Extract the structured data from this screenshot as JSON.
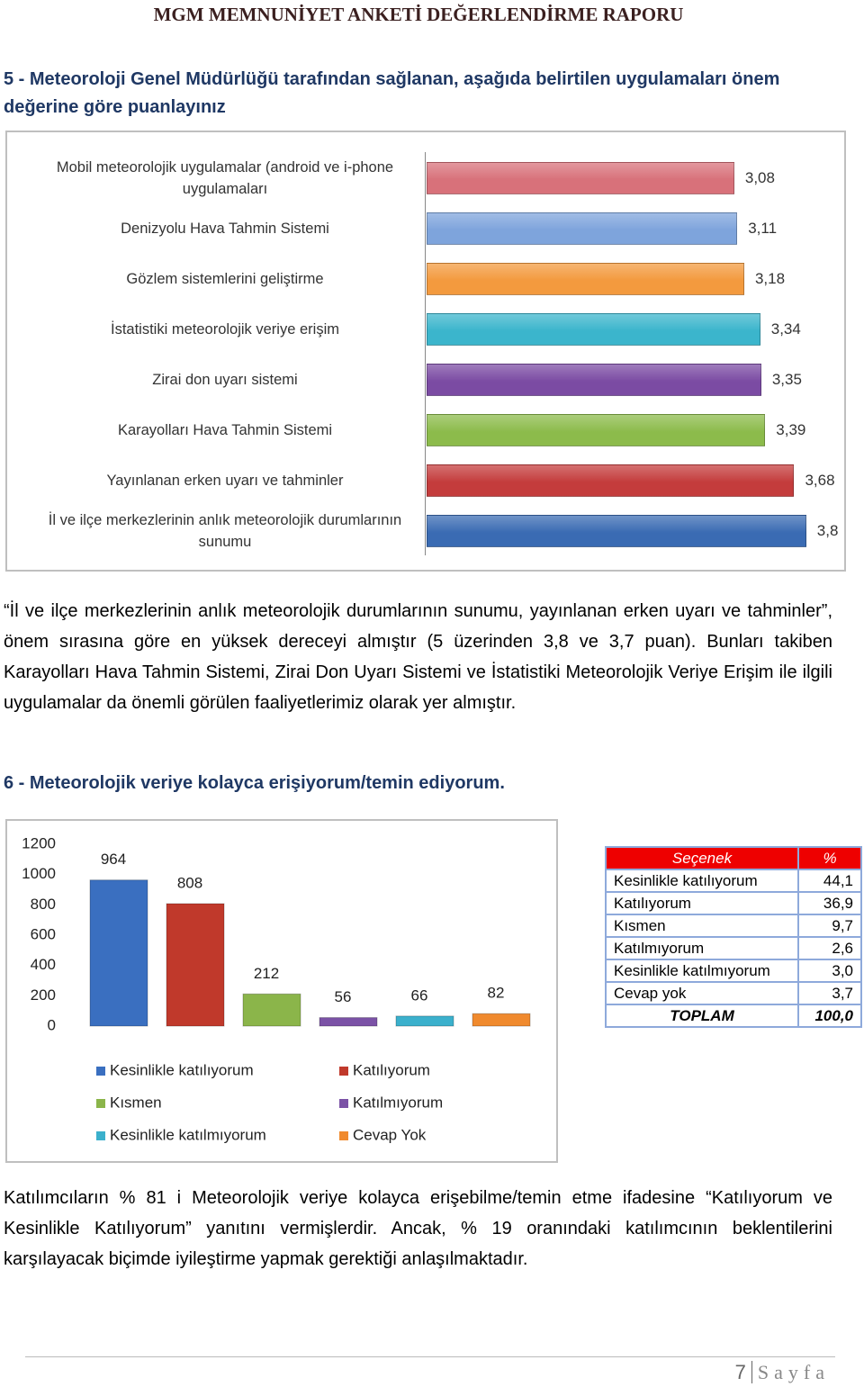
{
  "header": {
    "title": "MGM MEMNUNİYET ANKETİ DEĞERLENDİRME RAPORU"
  },
  "sections": [
    {
      "title": "5 - Meteoroloji Genel Müdürlüğü tarafından sağlanan, aşağıda belirtilen uygulamaları önem değerine göre puanlayınız",
      "paragraph": "“İl ve ilçe merkezlerinin anlık meteorolojik durumlarının sunumu, yayınlanan erken uyarı ve tahminler”, önem sırasına göre en yüksek dereceyi almıştır (5 üzerinden 3,8 ve 3,7 puan). Bunları takiben Karayolları Hava Tahmin Sistemi, Zirai Don Uyarı Sistemi ve İstatistiki Meteorolojik Veriye Erişim ile ilgili uygulamalar da önemli görülen faaliyetlerimiz olarak yer almıştır."
    },
    {
      "title": "6 -  Meteorolojik veriye kolayca erişiyorum/temin ediyorum.",
      "paragraph": "Katılımcıların % 81 i Meteorolojik veriye kolayca erişebilme/temin etme ifadesine “Katılıyorum ve Kesinlikle Katılıyorum” yanıtını vermişlerdir. Ancak, % 19 oranındaki katılımcının beklentilerini karşılayacak biçimde iyileştirme yapmak gerektiği anlaşılmaktadır."
    }
  ],
  "chart_data": [
    {
      "type": "hbar",
      "categories": [
        "Mobil meteorolojik uygulamalar (android ve i-phone uygulamaları",
        "Denizyolu Hava Tahmin Sistemi",
        "Gözlem sistemlerini geliştirme",
        "İstatistiki meteorolojik veriye erişim",
        "Zirai don uyarı sistemi",
        "Karayolları Hava Tahmin Sistemi",
        "Yayınlanan erken uyarı ve tahminler",
        "İl ve ilçe merkezlerinin anlık meteorolojik durumlarının sunumu"
      ],
      "values": [
        3.08,
        3.11,
        3.18,
        3.34,
        3.35,
        3.39,
        3.68,
        3.8
      ],
      "value_labels": [
        "3,08",
        "3,11",
        "3,18",
        "3,34",
        "3,35",
        "3,39",
        "3,68",
        "3,8"
      ],
      "colors": [
        "#d8717a",
        "#7ea4dc",
        "#f39a3e",
        "#3bb5cc",
        "#7b4ba3",
        "#8cbb4b",
        "#c43c3c",
        "#3a6bb3"
      ],
      "xlim": [
        0,
        4
      ]
    },
    {
      "type": "bar",
      "categories": [
        "Kesinlikle katılıyorum",
        "Katılıyorum",
        "Kısmen",
        "Katılmıyorum",
        "Kesinlikle katılmıyorum",
        "Cevap Yok"
      ],
      "values": [
        964,
        808,
        212,
        56,
        66,
        82
      ],
      "colors": [
        "#3a6fc0",
        "#c0392b",
        "#8bb54a",
        "#7b52a6",
        "#3bb0cc",
        "#f08a2e"
      ],
      "ylim": [
        0,
        1200
      ],
      "yticks": [
        0,
        200,
        400,
        600,
        800,
        1000,
        1200
      ]
    }
  ],
  "table": {
    "header": [
      "Seçenek",
      "%"
    ],
    "rows": [
      [
        "Kesinlikle katılıyorum",
        "44,1"
      ],
      [
        "Katılıyorum",
        "36,9"
      ],
      [
        "Kısmen",
        "9,7"
      ],
      [
        "Katılmıyorum",
        "2,6"
      ],
      [
        "Kesinlikle katılmıyorum",
        "3,0"
      ],
      [
        "Cevap yok",
        "3,7"
      ],
      [
        "TOPLAM",
        "100,0"
      ]
    ]
  },
  "footer": {
    "page": "7",
    "label": "Sayfa"
  }
}
